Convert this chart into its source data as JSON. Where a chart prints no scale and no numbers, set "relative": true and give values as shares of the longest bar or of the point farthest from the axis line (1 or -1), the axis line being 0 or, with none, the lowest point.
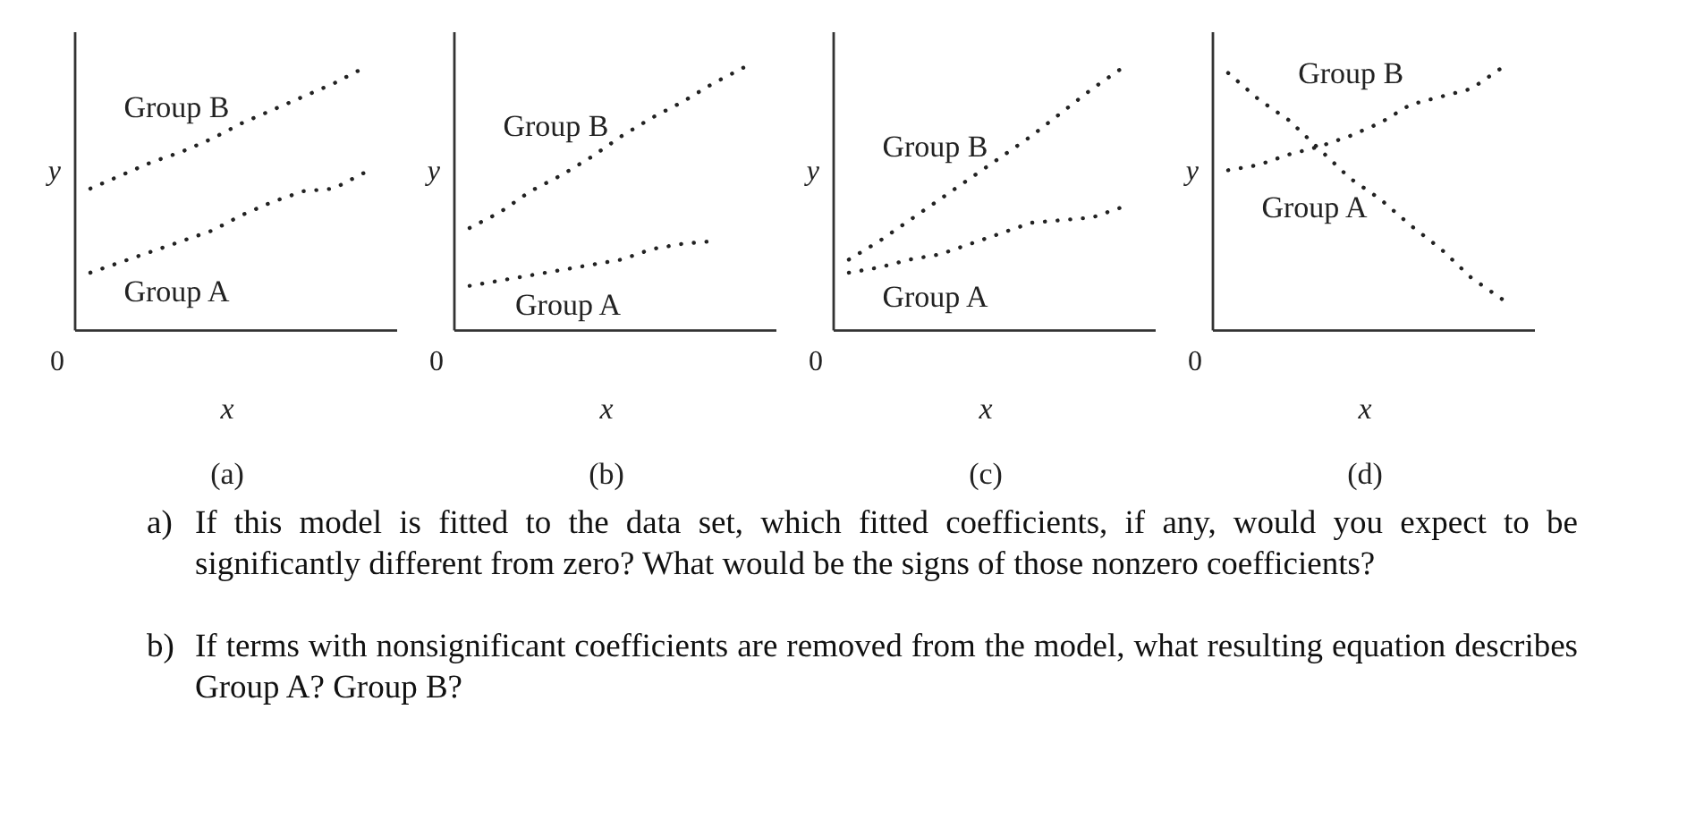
{
  "chart_data": [
    {
      "type": "line",
      "title": "(a)",
      "xlabel": "x",
      "ylabel": "y",
      "annotations": [
        "0"
      ],
      "relative": true,
      "legend": false,
      "grid": false,
      "marker": "none",
      "line_style": "dotted",
      "categories": [
        null,
        null,
        null,
        null,
        null,
        null,
        null,
        null,
        null,
        null
      ],
      "series": [
        {
          "name": "Group A",
          "color": "#222222",
          "values": [
            0.22,
            0.26,
            0.3,
            0.34,
            0.38,
            0.44,
            0.49,
            0.53,
            0.54,
            0.6
          ]
        },
        {
          "name": "Group B",
          "color": "#222222",
          "values": [
            0.54,
            0.59,
            0.64,
            0.68,
            0.73,
            0.79,
            0.84,
            0.89,
            0.94,
            1
          ]
        }
      ]
    },
    {
      "type": "line",
      "title": "(b)",
      "xlabel": "x",
      "ylabel": "y",
      "annotations": [
        "0"
      ],
      "relative": true,
      "legend": false,
      "grid": false,
      "marker": "none",
      "line_style": "dotted",
      "categories": [
        null,
        null,
        null,
        null,
        null,
        null,
        null,
        null,
        null,
        null
      ],
      "series": [
        {
          "name": "Group A",
          "color": "#222222",
          "values": [
            0.17,
            0.19,
            0.21,
            0.23,
            0.25,
            0.27,
            0.31,
            0.33,
            0.34,
            null
          ]
        },
        {
          "name": "Group B",
          "color": "#222222",
          "values": [
            0.39,
            0.45,
            0.53,
            0.59,
            0.66,
            0.74,
            0.81,
            0.87,
            0.94,
            1
          ]
        }
      ]
    },
    {
      "type": "line",
      "title": "(c)",
      "xlabel": "x",
      "ylabel": "y",
      "annotations": [
        "0"
      ],
      "relative": true,
      "legend": false,
      "grid": false,
      "marker": "none",
      "line_style": "dotted",
      "categories": [
        null,
        null,
        null,
        null,
        null,
        null,
        null,
        null,
        null,
        null
      ],
      "series": [
        {
          "name": "Group A",
          "color": "#222222",
          "values": [
            0.22,
            0.24,
            0.27,
            0.29,
            0.33,
            0.37,
            0.41,
            0.42,
            0.43,
            0.47
          ]
        },
        {
          "name": "Group B",
          "color": "#222222",
          "values": [
            0.27,
            0.34,
            0.42,
            0.5,
            0.58,
            0.66,
            0.74,
            0.83,
            0.92,
            1
          ]
        }
      ]
    },
    {
      "type": "line",
      "title": "(d)",
      "xlabel": "x",
      "ylabel": "y",
      "annotations": [
        "0"
      ],
      "relative": true,
      "legend": false,
      "grid": false,
      "marker": "none",
      "line_style": "dotted",
      "categories": [
        null,
        null,
        null,
        null,
        null,
        null,
        null,
        null,
        null,
        null
      ],
      "series": [
        {
          "name": "Group A",
          "color": "#222222",
          "values": [
            0.98,
            0.88,
            0.8,
            0.69,
            0.58,
            0.5,
            0.4,
            0.31,
            0.2,
            0.12
          ]
        },
        {
          "name": "Group B",
          "color": "#222222",
          "values": [
            0.61,
            0.63,
            0.67,
            0.7,
            0.74,
            0.79,
            0.86,
            0.89,
            0.92,
            1
          ]
        }
      ]
    },
    {
      "type": "other",
      "annotations": [
        "a)\tIf this model is fitted to the data set, which fitted coefficients, if any, would you expect to be significantly different from zero? What would be the signs of those nonzero coefficients?",
        "b)\tIf terms with nonsignificant coefficients are removed from the model, what resulting equation describes Group A? Group B?"
      ]
    }
  ]
}
